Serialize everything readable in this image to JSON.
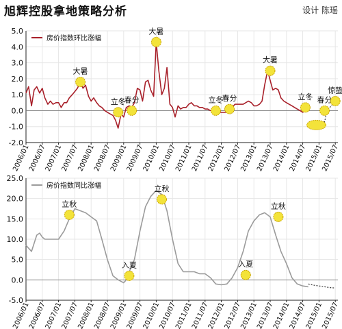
{
  "header": {
    "title": "旭辉控股拿地策略分析",
    "credit": "设计 陈瑶"
  },
  "colors": {
    "mom_line": "#a8202a",
    "yoy_line": "#9b9b9b",
    "marker_fill": "#f3e33a",
    "marker_stroke": "#c9a400",
    "grid": "#e6e6e6"
  },
  "chart_data": [
    {
      "type": "line",
      "title": "",
      "legend": "房价指数环比涨幅",
      "legend_position": "top-left",
      "grid": true,
      "ylim": [
        -2.0,
        5.0
      ],
      "yticks": [
        "5.0",
        "4.0",
        "3.0",
        "2.0",
        "1.0",
        "0.0",
        "-1.0",
        "-2.0"
      ],
      "xlim": [
        2006.0,
        2015.58
      ],
      "xticks": [
        "2006/01",
        "2006/07",
        "2007/01",
        "2007/07",
        "2008/01",
        "2008/07",
        "2009/01",
        "2009/07",
        "2010/01",
        "2010/07",
        "2011/01",
        "2011/07",
        "2012/01",
        "2012/07",
        "2013/01",
        "2013/07",
        "2014/01",
        "2014/07",
        "2015/01",
        "2015/07"
      ],
      "series": [
        {
          "name": "房价指数环比涨幅",
          "x": [
            2006.0,
            2006.08,
            2006.17,
            2006.25,
            2006.33,
            2006.42,
            2006.5,
            2006.58,
            2006.67,
            2006.75,
            2006.83,
            2006.92,
            2007.0,
            2007.08,
            2007.17,
            2007.25,
            2007.33,
            2007.42,
            2007.5,
            2007.58,
            2007.67,
            2007.75,
            2007.83,
            2007.92,
            2008.0,
            2008.08,
            2008.17,
            2008.25,
            2008.33,
            2008.42,
            2008.5,
            2008.58,
            2008.67,
            2008.75,
            2008.83,
            2008.92,
            2009.0,
            2009.08,
            2009.17,
            2009.25,
            2009.33,
            2009.42,
            2009.5,
            2009.58,
            2009.67,
            2009.75,
            2009.83,
            2009.92,
            2010.0,
            2010.08,
            2010.17,
            2010.25,
            2010.33,
            2010.42,
            2010.5,
            2010.58,
            2010.67,
            2010.75,
            2010.83,
            2010.92,
            2011.0,
            2011.08,
            2011.17,
            2011.25,
            2011.33,
            2011.42,
            2011.5,
            2011.58,
            2011.67,
            2011.75,
            2011.83,
            2011.92,
            2012.0,
            2012.08,
            2012.17,
            2012.25,
            2012.33,
            2012.42,
            2012.5,
            2012.58,
            2012.67,
            2012.75,
            2012.83,
            2012.92,
            2013.0,
            2013.08,
            2013.17,
            2013.25,
            2013.33,
            2013.42,
            2013.5,
            2013.58,
            2013.67,
            2013.75,
            2013.83,
            2013.92,
            2014.0,
            2014.08,
            2014.17,
            2014.25,
            2014.33,
            2014.42,
            2014.5,
            2014.58,
            2014.67
          ],
          "values": [
            1.1,
            1.5,
            0.3,
            1.3,
            1.5,
            1.1,
            1.4,
            0.8,
            0.4,
            0.6,
            0.4,
            0.5,
            0.5,
            0.2,
            0.5,
            0.5,
            0.8,
            1.0,
            1.2,
            1.4,
            1.8,
            1.4,
            1.6,
            0.9,
            0.6,
            0.8,
            0.5,
            0.3,
            0.2,
            0.0,
            -0.1,
            -0.2,
            -0.3,
            -0.6,
            -1.1,
            -0.2,
            -0.4,
            0.2,
            0.3,
            0.2,
            0.5,
            1.4,
            1.3,
            0.6,
            1.8,
            1.9,
            1.3,
            0.9,
            4.3,
            2.5,
            1.0,
            1.4,
            2.7,
            0.4,
            0.2,
            -0.4,
            0.3,
            0.1,
            0.2,
            0.2,
            0.4,
            0.5,
            0.3,
            0.3,
            0.2,
            0.2,
            0.1,
            0.1,
            0.0,
            0.0,
            -0.2,
            -0.1,
            -0.1,
            -0.1,
            -0.1,
            0.0,
            0.2,
            0.4,
            0.4,
            0.4,
            0.4,
            0.5,
            0.6,
            0.5,
            0.3,
            0.3,
            0.4,
            0.6,
            1.6,
            2.5,
            1.9,
            1.3,
            1.4,
            1.3,
            0.8,
            0.6,
            0.5,
            0.4,
            0.3,
            0.2,
            0.1,
            0.0,
            -0.1,
            0.0,
            0.4
          ]
        },
        {
          "name": "",
          "style": "dotted",
          "x": [
            2014.75,
            2014.83,
            2014.92,
            2015.0,
            2015.08,
            2015.17,
            2015.25,
            2015.33,
            2015.42
          ],
          "values": [
            -0.9,
            -0.9,
            -0.9,
            -0.9,
            -0.8,
            -0.7,
            0.0,
            0.2,
            0.4
          ]
        }
      ],
      "annotations": [
        {
          "label": "大暑",
          "x": 2007.67,
          "y": 1.8
        },
        {
          "label": "立冬",
          "x": 2008.83,
          "y": -0.1
        },
        {
          "label": "春分",
          "x": 2009.25,
          "y": 0.0
        },
        {
          "label": "大暑",
          "x": 2010.0,
          "y": 4.3
        },
        {
          "label": "立冬",
          "x": 2011.83,
          "y": 0.0
        },
        {
          "label": "春分",
          "x": 2012.25,
          "y": 0.1
        },
        {
          "label": "大暑",
          "x": 2013.5,
          "y": 2.5
        },
        {
          "label": "立冬",
          "x": 2014.58,
          "y": 0.2
        },
        {
          "label": "",
          "x": 2014.92,
          "y": -0.9
        },
        {
          "label": "春分",
          "x": 2015.17,
          "y": 0.0
        },
        {
          "label": "惊蛰",
          "x": 2015.5,
          "y": 0.6
        }
      ]
    },
    {
      "type": "line",
      "title": "",
      "legend": "房价指数同比涨幅",
      "legend_position": "top-left",
      "grid": true,
      "ylim": [
        -5.0,
        25.0
      ],
      "yticks": [
        "25.0",
        "20.0",
        "15.0",
        "10.0",
        "5.0",
        "0.0",
        "-5.0"
      ],
      "xlim": [
        2006.0,
        2015.58
      ],
      "xticks": [
        "2006/01",
        "2006/07",
        "2007/01",
        "2007/07",
        "2008/01",
        "2008/07",
        "2009/01",
        "2009/07",
        "2010/01",
        "2010/07",
        "2011/01",
        "2011/07",
        "2012/01",
        "2012/07",
        "2013/01",
        "2013/07",
        "2014/01",
        "2014/07",
        "2015/01",
        "2015/07"
      ],
      "series": [
        {
          "name": "房价指数同比涨幅",
          "x": [
            2006.0,
            2006.17,
            2006.33,
            2006.42,
            2006.5,
            2006.58,
            2006.67,
            2006.83,
            2007.0,
            2007.17,
            2007.33,
            2007.5,
            2007.67,
            2007.83,
            2008.0,
            2008.17,
            2008.33,
            2008.5,
            2008.67,
            2008.83,
            2009.0,
            2009.08,
            2009.17,
            2009.33,
            2009.5,
            2009.67,
            2009.83,
            2010.0,
            2010.17,
            2010.33,
            2010.5,
            2010.67,
            2010.83,
            2011.0,
            2011.17,
            2011.33,
            2011.5,
            2011.67,
            2011.83,
            2012.0,
            2012.17,
            2012.33,
            2012.5,
            2012.67,
            2012.83,
            2013.0,
            2013.17,
            2013.33,
            2013.5,
            2013.67,
            2013.83,
            2014.0,
            2014.17,
            2014.33,
            2014.5,
            2014.67
          ],
          "values": [
            8.5,
            7.0,
            11.0,
            11.5,
            10.5,
            10.0,
            10.0,
            10.0,
            10.0,
            12.0,
            15.0,
            17.5,
            17.0,
            16.5,
            15.5,
            14.5,
            10.0,
            5.0,
            1.0,
            0.0,
            -0.7,
            0.0,
            2.0,
            5.0,
            12.0,
            18.0,
            20.5,
            22.0,
            21.0,
            17.0,
            10.0,
            4.0,
            2.0,
            2.0,
            2.0,
            1.5,
            1.5,
            0.5,
            -1.0,
            -1.2,
            -1.0,
            0.5,
            3.0,
            7.0,
            12.0,
            14.5,
            16.0,
            16.5,
            15.5,
            11.0,
            7.0,
            4.0,
            0.5,
            -1.0,
            -1.5,
            -1.7
          ]
        },
        {
          "name": "",
          "style": "dotted",
          "x": [
            2014.67,
            2014.83,
            2015.0,
            2015.17,
            2015.33,
            2015.5
          ],
          "values": [
            -1.0,
            -1.3,
            -1.5,
            -1.7,
            -1.9,
            -2.0
          ]
        }
      ],
      "annotations": [
        {
          "label": "立秋",
          "x": 2007.33,
          "y": 16.0
        },
        {
          "label": "入夏",
          "x": 2009.17,
          "y": 1.0
        },
        {
          "label": "立秋",
          "x": 2010.17,
          "y": 19.8
        },
        {
          "label": "入夏",
          "x": 2012.75,
          "y": 1.2
        },
        {
          "label": "立秋",
          "x": 2013.75,
          "y": 15.5
        }
      ]
    }
  ]
}
